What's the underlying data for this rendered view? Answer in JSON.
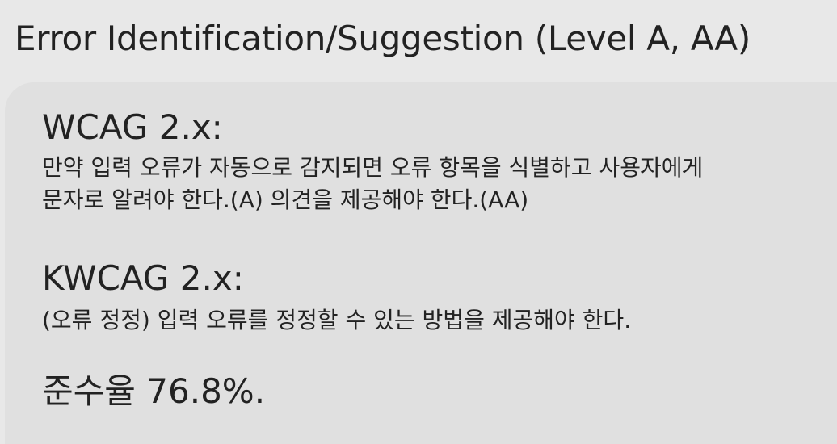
{
  "title": "Error Identification/Suggestion (Level A, AA)",
  "wcag": {
    "heading": "WCAG 2.x:",
    "lines": [
      "만약 입력 오류가 자동으로 감지되면 오류 항목을 식별하고 사용자에게",
      "문자로 알려야 한다.(A) 의견을 제공해야 한다.(AA)"
    ]
  },
  "kwcag": {
    "heading": "KWCAG 2.x:",
    "lines": [
      "(오류 정정) 입력 오류를 정정할 수 있는 방법을 제공해야 한다."
    ]
  },
  "compliance": "준수율 76.8%."
}
